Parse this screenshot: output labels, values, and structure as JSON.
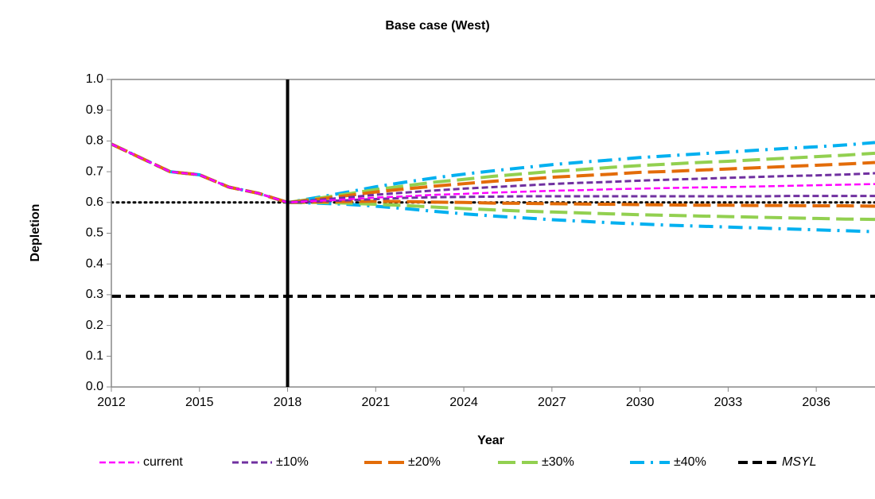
{
  "chart_data": {
    "type": "line",
    "title": "Base case (West)",
    "x_label": "Year",
    "y_label": "Depletion",
    "x": [
      2012,
      2013,
      2014,
      2015,
      2016,
      2017,
      2018,
      2019,
      2020,
      2021,
      2022,
      2023,
      2024,
      2025,
      2026,
      2027,
      2028,
      2029,
      2030,
      2031,
      2032,
      2033,
      2034,
      2035,
      2036,
      2037,
      2038
    ],
    "xlim": [
      2012,
      2038
    ],
    "xticks": [
      2012,
      2015,
      2018,
      2021,
      2024,
      2027,
      2030,
      2033,
      2036
    ],
    "ylim": [
      0,
      1
    ],
    "yticks": [
      {
        "value": 0,
        "label": "0.0"
      },
      0.1,
      0.2,
      0.3,
      0.4,
      0.5,
      0.6,
      0.7,
      0.8,
      0.9,
      {
        "value": 1,
        "label": "1.0"
      }
    ],
    "series": [
      {
        "name": "current",
        "color": "#ff00ff",
        "style": "dash",
        "width": 2.5,
        "values": [
          0.79,
          0.745,
          0.7,
          0.69,
          0.65,
          0.63,
          0.6,
          0.605,
          0.61,
          0.616,
          0.62,
          0.625,
          0.628,
          0.632,
          0.635,
          0.638,
          0.64,
          0.643,
          0.645,
          0.647,
          0.649,
          0.65,
          0.652,
          0.654,
          0.656,
          0.658,
          0.66
        ]
      },
      {
        "name": "±10%",
        "color": "#7030a0",
        "style": "dash",
        "width": 3,
        "values": [
          0.79,
          0.745,
          0.7,
          0.69,
          0.65,
          0.63,
          0.6,
          0.608,
          0.616,
          0.625,
          0.632,
          0.639,
          0.645,
          0.65,
          0.655,
          0.66,
          0.664,
          0.667,
          0.671,
          0.674,
          0.677,
          0.68,
          0.683,
          0.686,
          0.688,
          0.691,
          0.695
        ],
        "lower_values": [
          null,
          null,
          null,
          null,
          null,
          null,
          0.6,
          0.603,
          0.607,
          0.611,
          0.615,
          0.617,
          0.618,
          0.619,
          0.62,
          0.62,
          0.62,
          0.62,
          0.62,
          0.62,
          0.62,
          0.62,
          0.62,
          0.621,
          0.621,
          0.621,
          0.621
        ]
      },
      {
        "name": "±20%",
        "color": "#e36c09",
        "style": "longdash",
        "width": 4,
        "values": [
          0.79,
          0.745,
          0.7,
          0.69,
          0.65,
          0.63,
          0.6,
          0.61,
          0.622,
          0.634,
          0.644,
          0.653,
          0.661,
          0.669,
          0.675,
          0.682,
          0.687,
          0.692,
          0.698,
          0.701,
          0.705,
          0.709,
          0.713,
          0.717,
          0.721,
          0.725,
          0.73
        ],
        "lower_values": [
          null,
          null,
          null,
          null,
          null,
          null,
          0.6,
          0.602,
          0.603,
          0.604,
          0.603,
          0.601,
          0.6,
          0.598,
          0.597,
          0.596,
          0.595,
          0.594,
          0.593,
          0.592,
          0.591,
          0.591,
          0.59,
          0.59,
          0.589,
          0.589,
          0.588
        ]
      },
      {
        "name": "±30%",
        "color": "#92d050",
        "style": "longdash",
        "width": 4,
        "values": [
          0.79,
          0.745,
          0.7,
          0.69,
          0.65,
          0.63,
          0.6,
          0.613,
          0.627,
          0.642,
          0.654,
          0.666,
          0.675,
          0.685,
          0.693,
          0.701,
          0.707,
          0.714,
          0.72,
          0.725,
          0.73,
          0.734,
          0.739,
          0.744,
          0.749,
          0.754,
          0.76
        ],
        "lower_values": [
          null,
          null,
          null,
          null,
          null,
          null,
          0.6,
          0.6,
          0.598,
          0.594,
          0.59,
          0.585,
          0.58,
          0.576,
          0.572,
          0.569,
          0.566,
          0.563,
          0.56,
          0.558,
          0.556,
          0.554,
          0.552,
          0.55,
          0.548,
          0.546,
          0.545
        ]
      },
      {
        "name": "±40%",
        "color": "#00b0f0",
        "style": "dashdot",
        "width": 4,
        "values": [
          0.79,
          0.745,
          0.7,
          0.69,
          0.65,
          0.63,
          0.6,
          0.616,
          0.633,
          0.651,
          0.666,
          0.68,
          0.692,
          0.703,
          0.713,
          0.723,
          0.731,
          0.738,
          0.746,
          0.752,
          0.758,
          0.764,
          0.77,
          0.776,
          0.781,
          0.787,
          0.795
        ],
        "lower_values": [
          null,
          null,
          null,
          null,
          null,
          null,
          0.6,
          0.598,
          0.594,
          0.588,
          0.58,
          0.571,
          0.563,
          0.556,
          0.55,
          0.544,
          0.539,
          0.534,
          0.53,
          0.526,
          0.523,
          0.52,
          0.517,
          0.514,
          0.511,
          0.508,
          0.505
        ]
      }
    ],
    "hlines": [
      {
        "name": "MSYL",
        "y": 0.295,
        "style": "thickdash",
        "color": "#000000"
      },
      {
        "y": 0.6,
        "style": "dot",
        "color": "#000000"
      }
    ],
    "vline": {
      "x": 2018,
      "color": "#000000"
    }
  }
}
